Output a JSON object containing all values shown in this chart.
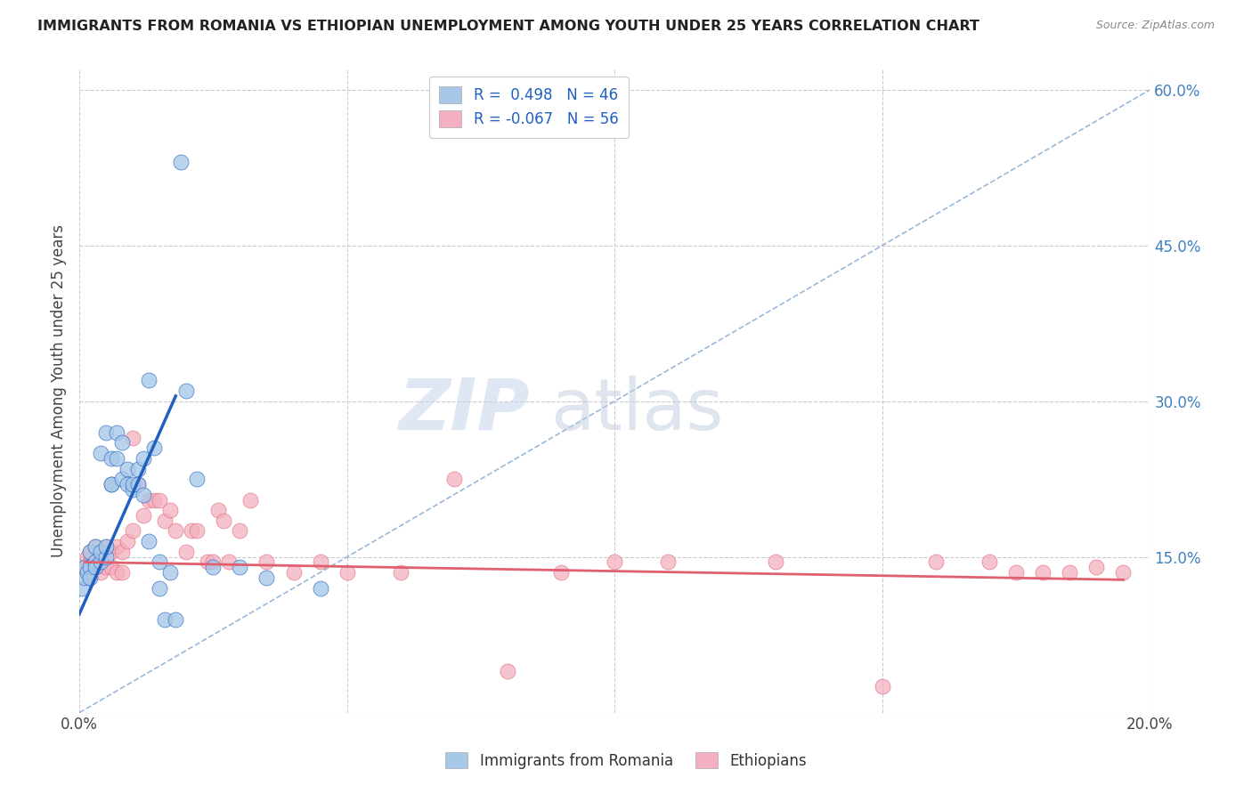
{
  "title": "IMMIGRANTS FROM ROMANIA VS ETHIOPIAN UNEMPLOYMENT AMONG YOUTH UNDER 25 YEARS CORRELATION CHART",
  "source": "Source: ZipAtlas.com",
  "ylabel": "Unemployment Among Youth under 25 years",
  "xlim": [
    0.0,
    0.2
  ],
  "ylim": [
    0.0,
    0.62
  ],
  "yticks": [
    0.0,
    0.15,
    0.3,
    0.45,
    0.6
  ],
  "ytick_labels": [
    "",
    "15.0%",
    "30.0%",
    "45.0%",
    "60.0%"
  ],
  "xticks": [
    0.0,
    0.05,
    0.1,
    0.15,
    0.2
  ],
  "xtick_labels": [
    "0.0%",
    "",
    "",
    "",
    "20.0%"
  ],
  "legend_r1": "R =  0.498   N = 46",
  "legend_r2": "R = -0.067   N = 56",
  "color_romania": "#a8c8e8",
  "color_ethiopian": "#f4b0c0",
  "color_romania_line": "#2060c0",
  "color_ethiopian_line": "#e06070",
  "color_diagonal": "#9ab8d8",
  "watermark_zip": "ZIP",
  "watermark_atlas": "atlas",
  "romania_scatter_x": [
    0.0005,
    0.001,
    0.001,
    0.0015,
    0.002,
    0.002,
    0.002,
    0.003,
    0.003,
    0.003,
    0.004,
    0.004,
    0.004,
    0.005,
    0.005,
    0.005,
    0.006,
    0.006,
    0.006,
    0.007,
    0.007,
    0.008,
    0.008,
    0.009,
    0.009,
    0.01,
    0.01,
    0.011,
    0.011,
    0.012,
    0.012,
    0.013,
    0.013,
    0.014,
    0.015,
    0.015,
    0.016,
    0.017,
    0.018,
    0.019,
    0.02,
    0.022,
    0.025,
    0.03,
    0.035,
    0.045
  ],
  "romania_scatter_y": [
    0.12,
    0.13,
    0.14,
    0.135,
    0.14,
    0.155,
    0.13,
    0.145,
    0.14,
    0.16,
    0.145,
    0.155,
    0.25,
    0.15,
    0.16,
    0.27,
    0.22,
    0.245,
    0.22,
    0.245,
    0.27,
    0.225,
    0.26,
    0.235,
    0.22,
    0.215,
    0.22,
    0.235,
    0.22,
    0.245,
    0.21,
    0.165,
    0.32,
    0.255,
    0.145,
    0.12,
    0.09,
    0.135,
    0.09,
    0.53,
    0.31,
    0.225,
    0.14,
    0.14,
    0.13,
    0.12
  ],
  "ethiopian_scatter_x": [
    0.001,
    0.0015,
    0.002,
    0.002,
    0.003,
    0.003,
    0.004,
    0.004,
    0.005,
    0.005,
    0.006,
    0.006,
    0.007,
    0.007,
    0.008,
    0.008,
    0.009,
    0.01,
    0.01,
    0.011,
    0.012,
    0.013,
    0.014,
    0.015,
    0.016,
    0.017,
    0.018,
    0.02,
    0.021,
    0.022,
    0.024,
    0.025,
    0.026,
    0.027,
    0.028,
    0.03,
    0.032,
    0.035,
    0.04,
    0.045,
    0.05,
    0.06,
    0.07,
    0.08,
    0.09,
    0.1,
    0.11,
    0.13,
    0.15,
    0.16,
    0.17,
    0.175,
    0.18,
    0.185,
    0.19,
    0.195
  ],
  "ethiopian_scatter_y": [
    0.14,
    0.15,
    0.145,
    0.155,
    0.14,
    0.16,
    0.135,
    0.155,
    0.14,
    0.16,
    0.14,
    0.155,
    0.135,
    0.16,
    0.135,
    0.155,
    0.165,
    0.265,
    0.175,
    0.22,
    0.19,
    0.205,
    0.205,
    0.205,
    0.185,
    0.195,
    0.175,
    0.155,
    0.175,
    0.175,
    0.145,
    0.145,
    0.195,
    0.185,
    0.145,
    0.175,
    0.205,
    0.145,
    0.135,
    0.145,
    0.135,
    0.135,
    0.225,
    0.04,
    0.135,
    0.145,
    0.145,
    0.145,
    0.025,
    0.145,
    0.145,
    0.135,
    0.135,
    0.135,
    0.14,
    0.135
  ],
  "romania_line_x": [
    0.0,
    0.018
  ],
  "romania_line_y": [
    0.095,
    0.305
  ],
  "ethiopian_line_x": [
    0.001,
    0.195
  ],
  "ethiopian_line_y": [
    0.145,
    0.128
  ]
}
